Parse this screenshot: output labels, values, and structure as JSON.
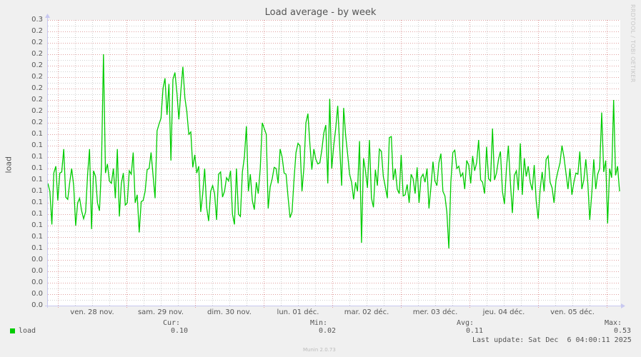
{
  "title": "Load average - by week",
  "watermark": "RRDTOOL / TOBI OETIKER",
  "y_axis_label": "load",
  "y_tick_labels": [
    "0.3",
    "0.2",
    "0.2",
    "0.2",
    "0.2",
    "0.2",
    "0.2",
    "0.2",
    "0.2",
    "0.2",
    "0.1",
    "0.1",
    "0.1",
    "0.1",
    "0.1",
    "0.1",
    "0.1",
    "0.1",
    "0.1",
    "0.1",
    "0.1",
    "0.0",
    "0.0",
    "0.0",
    "0.0",
    "0.0"
  ],
  "x_tick_labels": [
    "ven. 28 nov.",
    "sam. 29 nov.",
    "dim. 30 nov.",
    "lun. 01 déc.",
    "mar. 02 déc.",
    "mer. 03 déc.",
    "jeu. 04 déc.",
    "ven. 05 déc."
  ],
  "legend": {
    "series_name": "load",
    "color": "#00cc00",
    "cur_label": "Cur:",
    "cur_value": "0.10",
    "min_label": "Min:",
    "min_value": "0.02",
    "avg_label": "Avg:",
    "avg_value": "0.11",
    "max_label": "Max:",
    "max_value": "0.53",
    "last_update": "Last update: Sat Dec  6 04:00:11 2025"
  },
  "footer": "Munin 2.0.73",
  "colors": {
    "line": "#00cc00",
    "major_grid": "#e0a0a0",
    "minor_grid": "#d0d0d0",
    "axis": "#c8c8f0",
    "background": "#f0f0f0",
    "plot_background": "#ffffff"
  },
  "chart_data": {
    "type": "line",
    "title": "Load average - by week",
    "xlabel": "",
    "ylabel": "load",
    "ylim": [
      0,
      0.25
    ],
    "grid": true,
    "legend_position": "bottom",
    "categories": [
      "ven. 28 nov.",
      "sam. 29 nov.",
      "dim. 30 nov.",
      "lun. 01 déc.",
      "mar. 02 déc.",
      "mer. 03 déc.",
      "jeu. 04 déc.",
      "ven. 05 déc."
    ],
    "series": [
      {
        "name": "load",
        "color": "#00cc00",
        "stats": {
          "cur": 0.1,
          "min": 0.02,
          "avg": 0.11,
          "max": 0.53
        },
        "values": [
          0.107,
          0.1,
          0.071,
          0.116,
          0.122,
          0.092,
          0.116,
          0.117,
          0.137,
          0.095,
          0.093,
          0.108,
          0.12,
          0.105,
          0.07,
          0.09,
          0.094,
          0.083,
          0.076,
          0.082,
          0.115,
          0.137,
          0.067,
          0.118,
          0.113,
          0.09,
          0.083,
          0.122,
          0.22,
          0.116,
          0.124,
          0.109,
          0.107,
          0.12,
          0.094,
          0.137,
          0.078,
          0.107,
          0.116,
          0.088,
          0.09,
          0.118,
          0.115,
          0.134,
          0.09,
          0.097,
          0.064,
          0.091,
          0.092,
          0.1,
          0.119,
          0.12,
          0.134,
          0.114,
          0.094,
          0.153,
          0.159,
          0.164,
          0.19,
          0.199,
          0.167,
          0.194,
          0.127,
          0.198,
          0.204,
          0.186,
          0.163,
          0.188,
          0.209,
          0.182,
          0.17,
          0.15,
          0.152,
          0.121,
          0.132,
          0.116,
          0.122,
          0.082,
          0.098,
          0.12,
          0.086,
          0.074,
          0.1,
          0.105,
          0.098,
          0.075,
          0.115,
          0.117,
          0.095,
          0.1,
          0.112,
          0.109,
          0.118,
          0.08,
          0.071,
          0.12,
          0.08,
          0.078,
          0.117,
          0.13,
          0.157,
          0.1,
          0.115,
          0.092,
          0.084,
          0.108,
          0.098,
          0.12,
          0.16,
          0.155,
          0.15,
          0.085,
          0.104,
          0.111,
          0.121,
          0.12,
          0.107,
          0.137,
          0.13,
          0.116,
          0.115,
          0.095,
          0.077,
          0.082,
          0.11,
          0.134,
          0.142,
          0.14,
          0.1,
          0.121,
          0.16,
          0.168,
          0.141,
          0.119,
          0.137,
          0.128,
          0.124,
          0.125,
          0.136,
          0.151,
          0.158,
          0.107,
          0.181,
          0.12,
          0.14,
          0.155,
          0.175,
          0.14,
          0.105,
          0.173,
          0.149,
          0.133,
          0.115,
          0.108,
          0.093,
          0.108,
          0.1,
          0.144,
          0.055,
          0.129,
          0.118,
          0.103,
          0.145,
          0.094,
          0.086,
          0.119,
          0.105,
          0.137,
          0.135,
          0.113,
          0.104,
          0.094,
          0.147,
          0.148,
          0.11,
          0.12,
          0.102,
          0.098,
          0.132,
          0.096,
          0.097,
          0.106,
          0.09,
          0.115,
          0.111,
          0.098,
          0.121,
          0.09,
          0.112,
          0.115,
          0.108,
          0.12,
          0.085,
          0.104,
          0.126,
          0.109,
          0.105,
          0.125,
          0.133,
          0.1,
          0.096,
          0.082,
          0.05,
          0.108,
          0.134,
          0.136,
          0.12,
          0.122,
          0.113,
          0.116,
          0.102,
          0.127,
          0.123,
          0.107,
          0.131,
          0.118,
          0.125,
          0.145,
          0.11,
          0.108,
          0.098,
          0.139,
          0.111,
          0.109,
          0.155,
          0.11,
          0.116,
          0.128,
          0.135,
          0.1,
          0.089,
          0.12,
          0.14,
          0.108,
          0.081,
          0.114,
          0.118,
          0.101,
          0.142,
          0.097,
          0.129,
          0.113,
          0.122,
          0.108,
          0.101,
          0.123,
          0.092,
          0.076,
          0.102,
          0.117,
          0.1,
          0.128,
          0.131,
          0.108,
          0.103,
          0.09,
          0.11,
          0.118,
          0.125,
          0.14,
          0.13,
          0.116,
          0.102,
          0.12,
          0.097,
          0.108,
          0.116,
          0.115,
          0.135,
          0.102,
          0.11,
          0.128,
          0.107,
          0.075,
          0.098,
          0.128,
          0.102,
          0.115,
          0.12,
          0.169,
          0.117,
          0.127,
          0.072,
          0.12,
          0.112,
          0.18,
          0.114,
          0.122,
          0.1
        ]
      }
    ]
  }
}
